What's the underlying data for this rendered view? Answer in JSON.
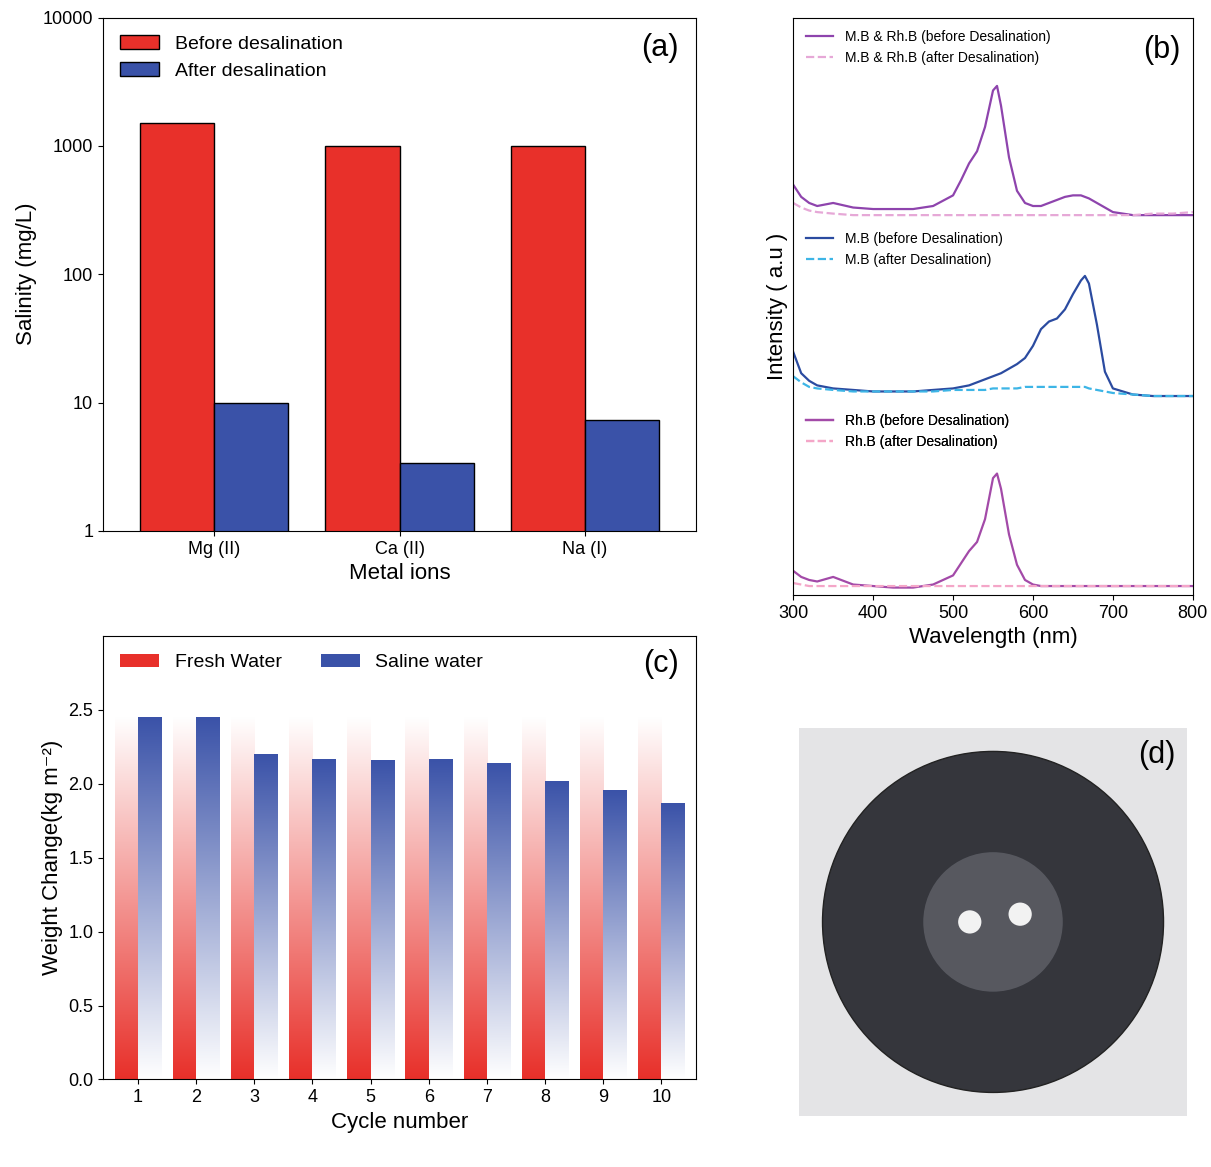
{
  "chart_data": [
    {
      "type": "bar",
      "title": "(a)",
      "xlabel": "Metal ions",
      "ylabel": "Salinity (mg/L)",
      "categories": [
        "Mg (II)",
        "Ca (II)",
        "Na (I)"
      ],
      "series": [
        {
          "name": "Before desalination",
          "color": "#e8302a",
          "values": [
            1500,
            1000,
            1000
          ]
        },
        {
          "name": "After desalination",
          "color": "#3a52a8",
          "values": [
            10,
            3.4,
            7.3
          ]
        }
      ],
      "log": "y",
      "ylim": [
        1,
        10000
      ],
      "yticks": [
        1,
        10,
        100,
        1000,
        10000
      ],
      "legend": "upper left"
    },
    {
      "type": "line",
      "title": "(b)",
      "xlabel": "Wavelength (nm)",
      "ylabel": "Intensity ( a.u )",
      "x": [
        300,
        310,
        320,
        330,
        350,
        375,
        400,
        425,
        450,
        475,
        500,
        510,
        520,
        530,
        540,
        550,
        555,
        560,
        570,
        580,
        590,
        600,
        610,
        620,
        630,
        640,
        650,
        660,
        665,
        670,
        680,
        690,
        700,
        725,
        750,
        775,
        800
      ],
      "series": [
        {
          "name": "M.B & Rh.B (before Desalination)",
          "color": "#8e44ad",
          "line_style": "solid",
          "values": [
            2.7,
            2.62,
            2.58,
            2.56,
            2.58,
            2.55,
            2.54,
            2.54,
            2.54,
            2.56,
            2.63,
            2.73,
            2.84,
            2.92,
            3.08,
            3.32,
            3.35,
            3.22,
            2.88,
            2.66,
            2.58,
            2.56,
            2.56,
            2.58,
            2.6,
            2.62,
            2.63,
            2.63,
            2.62,
            2.61,
            2.58,
            2.55,
            2.52,
            2.5,
            2.5,
            2.5,
            2.5
          ]
        },
        {
          "name": "M.B & Rh.B (after Desalination)",
          "color": "#e6a8d7",
          "line_style": "dashed",
          "values": [
            2.58,
            2.55,
            2.53,
            2.52,
            2.51,
            2.5,
            2.5,
            2.5,
            2.5,
            2.5,
            2.5,
            2.5,
            2.5,
            2.5,
            2.5,
            2.5,
            2.5,
            2.5,
            2.5,
            2.5,
            2.5,
            2.5,
            2.5,
            2.5,
            2.5,
            2.5,
            2.5,
            2.5,
            2.5,
            2.5,
            2.5,
            2.5,
            2.5,
            2.5,
            2.51,
            2.51,
            2.52
          ]
        },
        {
          "name": "M.B (before Desalination)",
          "color": "#2b4ba0",
          "line_style": "solid",
          "values": [
            1.6,
            1.46,
            1.41,
            1.38,
            1.36,
            1.35,
            1.34,
            1.34,
            1.34,
            1.35,
            1.36,
            1.37,
            1.38,
            1.4,
            1.42,
            1.44,
            1.45,
            1.46,
            1.49,
            1.52,
            1.56,
            1.64,
            1.75,
            1.8,
            1.82,
            1.88,
            1.98,
            2.07,
            2.1,
            2.05,
            1.78,
            1.47,
            1.36,
            1.32,
            1.31,
            1.31,
            1.31
          ]
        },
        {
          "name": "M.B (after Desalination)",
          "color": "#3db5e6",
          "line_style": "dashed",
          "values": [
            1.44,
            1.4,
            1.37,
            1.36,
            1.35,
            1.34,
            1.34,
            1.34,
            1.34,
            1.34,
            1.35,
            1.35,
            1.35,
            1.35,
            1.35,
            1.36,
            1.36,
            1.36,
            1.36,
            1.36,
            1.37,
            1.37,
            1.37,
            1.37,
            1.37,
            1.37,
            1.37,
            1.37,
            1.37,
            1.36,
            1.35,
            1.34,
            1.33,
            1.32,
            1.31,
            1.31,
            1.31
          ]
        },
        {
          "name": "Rh.B (before Desalination)",
          "color": "#a34aa8",
          "line_style": "solid",
          "values": [
            0.16,
            0.12,
            0.1,
            0.09,
            0.12,
            0.07,
            0.06,
            0.05,
            0.05,
            0.07,
            0.13,
            0.21,
            0.29,
            0.35,
            0.5,
            0.77,
            0.8,
            0.7,
            0.4,
            0.2,
            0.1,
            0.07,
            0.06,
            0.06,
            0.06,
            0.06,
            0.06,
            0.06,
            0.06,
            0.06,
            0.06,
            0.06,
            0.06,
            0.06,
            0.06,
            0.06,
            0.06
          ]
        },
        {
          "name": "Rh.B (after Desalination)",
          "color": "#f4a6c8",
          "line_style": "dashed",
          "values": [
            0.08,
            0.07,
            0.06,
            0.06,
            0.06,
            0.06,
            0.06,
            0.06,
            0.06,
            0.06,
            0.06,
            0.06,
            0.06,
            0.06,
            0.06,
            0.06,
            0.06,
            0.06,
            0.06,
            0.06,
            0.06,
            0.06,
            0.06,
            0.06,
            0.06,
            0.06,
            0.06,
            0.06,
            0.06,
            0.06,
            0.06,
            0.06,
            0.06,
            0.06,
            0.06,
            0.06,
            0.06
          ]
        }
      ],
      "xlim": [
        300,
        800
      ],
      "xticks": [
        300,
        400,
        500,
        600,
        700,
        800
      ],
      "ylim": [
        0,
        3.8
      ],
      "yticks": [],
      "tick_labels": "x",
      "legend": "upper left"
    },
    {
      "type": "bar",
      "title": "(c)",
      "xlabel": "Cycle number",
      "ylabel": "Weight Change(kg m⁻²)",
      "categories": [
        "1",
        "2",
        "3",
        "4",
        "5",
        "6",
        "7",
        "8",
        "9",
        "10"
      ],
      "series": [
        {
          "name": "Fresh Water",
          "color": "#e8302a",
          "values": [
            2.45,
            2.45,
            2.45,
            2.45,
            2.45,
            2.45,
            2.45,
            2.45,
            2.45,
            2.45
          ]
        },
        {
          "name": "Saline water",
          "color": "#3a52a8",
          "values": [
            2.45,
            2.45,
            2.2,
            2.17,
            2.16,
            2.165,
            2.14,
            2.02,
            1.96,
            1.87
          ]
        }
      ],
      "ylim": [
        0,
        3.0
      ],
      "yticks": [
        {
          "value": 0,
          "label": "0.0"
        },
        0.5,
        {
          "value": 1,
          "label": "1.0"
        },
        1.5,
        {
          "value": 2,
          "label": "2.0"
        },
        2.5
      ],
      "legend": "upper left"
    },
    {
      "type": "image",
      "title": "(d)"
    }
  ]
}
